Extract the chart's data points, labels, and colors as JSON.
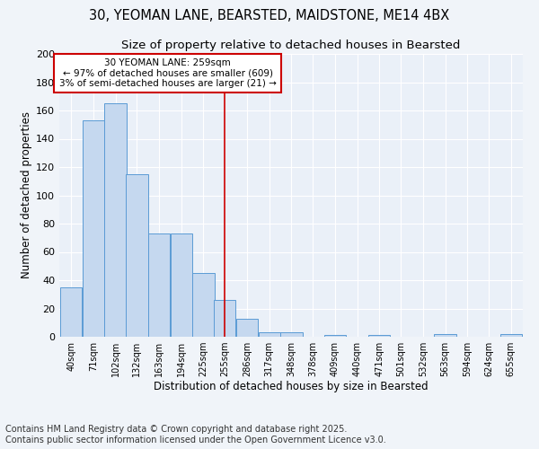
{
  "title_line1": "30, YEOMAN LANE, BEARSTED, MAIDSTONE, ME14 4BX",
  "title_line2": "Size of property relative to detached houses in Bearsted",
  "xlabel": "Distribution of detached houses by size in Bearsted",
  "ylabel": "Number of detached properties",
  "bar_color": "#c5d8ef",
  "bar_edge_color": "#5b9bd5",
  "annotation_text_line1": "30 YEOMAN LANE: 259sqm",
  "annotation_text_line2": "← 97% of detached houses are smaller (609)",
  "annotation_text_line3": "3% of semi-detached houses are larger (21) →",
  "annotation_box_color": "#ffffff",
  "annotation_box_edge": "#cc0000",
  "vline_color": "#cc0000",
  "categories": [
    "40sqm",
    "71sqm",
    "102sqm",
    "132sqm",
    "163sqm",
    "194sqm",
    "225sqm",
    "255sqm",
    "286sqm",
    "317sqm",
    "348sqm",
    "378sqm",
    "409sqm",
    "440sqm",
    "471sqm",
    "501sqm",
    "532sqm",
    "563sqm",
    "594sqm",
    "624sqm",
    "655sqm"
  ],
  "values": [
    35,
    153,
    165,
    115,
    73,
    73,
    45,
    26,
    13,
    3,
    3,
    0,
    1,
    0,
    1,
    0,
    0,
    2,
    0,
    0,
    2
  ],
  "bin_centers": [
    40,
    71,
    102,
    132,
    163,
    194,
    225,
    255,
    286,
    317,
    348,
    378,
    409,
    440,
    471,
    501,
    532,
    563,
    594,
    624,
    655
  ],
  "bin_width": 31,
  "vline_x_index": 7,
  "ylim": [
    0,
    200
  ],
  "yticks": [
    0,
    20,
    40,
    60,
    80,
    100,
    120,
    140,
    160,
    180,
    200
  ],
  "background_color": "#f0f4f9",
  "plot_background": "#eaf0f8",
  "grid_color": "#ffffff",
  "footer_line1": "Contains HM Land Registry data © Crown copyright and database right 2025.",
  "footer_line2": "Contains public sector information licensed under the Open Government Licence v3.0.",
  "title_fontsize": 10.5,
  "subtitle_fontsize": 9.5,
  "annotation_fontsize": 7.5,
  "axis_label_fontsize": 8.5,
  "tick_fontsize": 7,
  "footer_fontsize": 7
}
